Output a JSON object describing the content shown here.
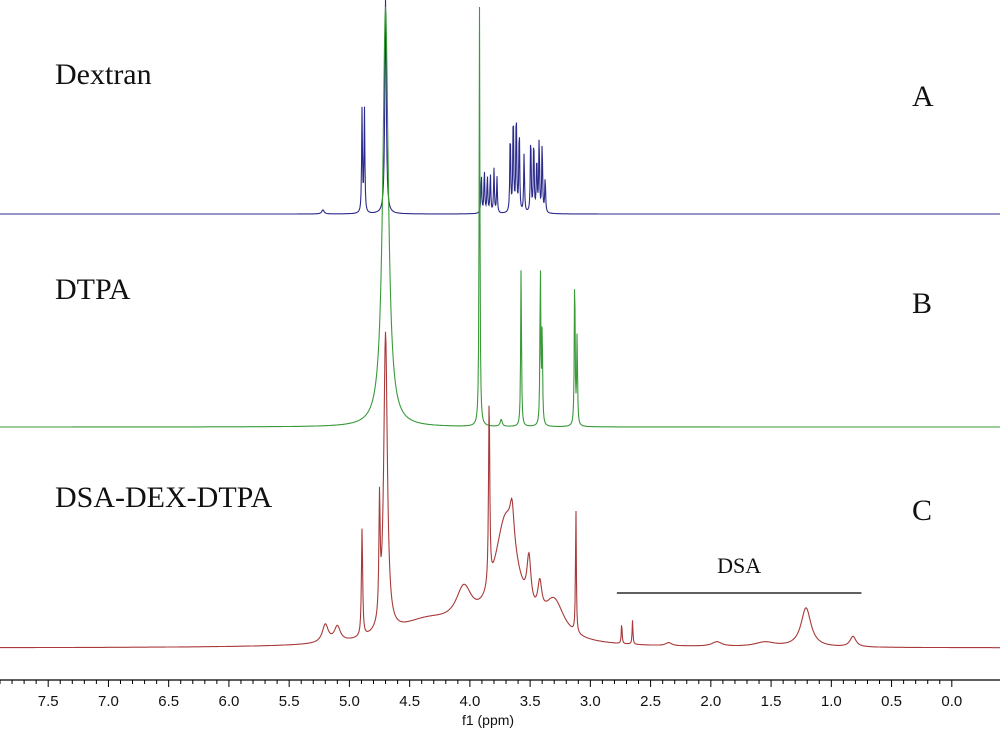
{
  "chart_data": {
    "type": "line",
    "title": "",
    "xlabel": "f1 (ppm)",
    "ylabel": "",
    "x_reversed": true,
    "xlim": [
      7.9,
      -0.4
    ],
    "ticks": [
      "7.5",
      "7.0",
      "6.5",
      "6.0",
      "5.5",
      "5.0",
      "4.5",
      "4.0",
      "3.5",
      "3.0",
      "2.5",
      "2.0",
      "1.5",
      "1.0",
      "0.5",
      "0.0"
    ],
    "tick_values": [
      7.5,
      7.0,
      6.5,
      6.0,
      5.5,
      5.0,
      4.5,
      4.0,
      3.5,
      3.0,
      2.5,
      2.0,
      1.5,
      1.0,
      0.5,
      0.0
    ],
    "annotation": {
      "text": "DSA",
      "x_from": 2.78,
      "x_to": 0.75
    },
    "series": [
      {
        "name": "Dextran",
        "tag": "A",
        "color": "#2b2b8c",
        "peaks": [
          {
            "x": 5.22,
            "h": 0.02,
            "w": 0.012
          },
          {
            "x": 4.895,
            "h": 0.52,
            "w": 0.004
          },
          {
            "x": 4.875,
            "h": 0.52,
            "w": 0.004
          },
          {
            "x": 4.7,
            "h": 1.1,
            "w": 0.007
          },
          {
            "x": 3.905,
            "h": 0.2,
            "w": 0.004
          },
          {
            "x": 3.88,
            "h": 0.22,
            "w": 0.004
          },
          {
            "x": 3.855,
            "h": 0.19,
            "w": 0.004
          },
          {
            "x": 3.83,
            "h": 0.2,
            "w": 0.004
          },
          {
            "x": 3.8,
            "h": 0.22,
            "w": 0.004
          },
          {
            "x": 3.775,
            "h": 0.18,
            "w": 0.004
          },
          {
            "x": 3.665,
            "h": 0.42,
            "w": 0.004
          },
          {
            "x": 3.64,
            "h": 0.52,
            "w": 0.004
          },
          {
            "x": 3.615,
            "h": 0.53,
            "w": 0.004
          },
          {
            "x": 3.59,
            "h": 0.44,
            "w": 0.004
          },
          {
            "x": 3.55,
            "h": 0.3,
            "w": 0.004
          },
          {
            "x": 3.495,
            "h": 0.4,
            "w": 0.004
          },
          {
            "x": 3.47,
            "h": 0.38,
            "w": 0.004
          },
          {
            "x": 3.445,
            "h": 0.28,
            "w": 0.004
          },
          {
            "x": 3.425,
            "h": 0.38,
            "w": 0.004
          },
          {
            "x": 3.4,
            "h": 0.36,
            "w": 0.004
          },
          {
            "x": 3.375,
            "h": 0.18,
            "w": 0.004
          }
        ]
      },
      {
        "name": "DTPA",
        "tag": "B",
        "color": "#3a9a3a",
        "peaks": [
          {
            "x": 4.7,
            "h": 1.2,
            "w": 0.028
          },
          {
            "x": 3.92,
            "h": 1.2,
            "w": 0.004
          },
          {
            "x": 3.74,
            "h": 0.02,
            "w": 0.01
          },
          {
            "x": 3.575,
            "h": 0.46,
            "w": 0.004
          },
          {
            "x": 3.415,
            "h": 0.46,
            "w": 0.004
          },
          {
            "x": 3.4,
            "h": 0.28,
            "w": 0.004
          },
          {
            "x": 3.13,
            "h": 0.45,
            "w": 0.004
          },
          {
            "x": 3.11,
            "h": 0.26,
            "w": 0.004
          }
        ]
      },
      {
        "name": "DSA-DEX-DTPA",
        "tag": "C",
        "color": "#a83a3a",
        "peaks": [
          {
            "x": 5.2,
            "h": 0.06,
            "w": 0.03
          },
          {
            "x": 5.1,
            "h": 0.05,
            "w": 0.03
          },
          {
            "x": 4.895,
            "h": 0.36,
            "w": 0.006
          },
          {
            "x": 4.75,
            "h": 0.38,
            "w": 0.006
          },
          {
            "x": 4.7,
            "h": 1.0,
            "w": 0.018
          },
          {
            "x": 4.35,
            "h": 0.08,
            "w": 0.35
          },
          {
            "x": 4.05,
            "h": 0.12,
            "w": 0.08
          },
          {
            "x": 3.84,
            "h": 0.62,
            "w": 0.006
          },
          {
            "x": 3.7,
            "h": 0.4,
            "w": 0.12
          },
          {
            "x": 3.65,
            "h": 0.12,
            "w": 0.02
          },
          {
            "x": 3.51,
            "h": 0.16,
            "w": 0.02
          },
          {
            "x": 3.42,
            "h": 0.1,
            "w": 0.02
          },
          {
            "x": 3.3,
            "h": 0.12,
            "w": 0.1
          },
          {
            "x": 3.12,
            "h": 0.42,
            "w": 0.004
          },
          {
            "x": 2.74,
            "h": 0.07,
            "w": 0.004
          },
          {
            "x": 2.65,
            "h": 0.08,
            "w": 0.004
          },
          {
            "x": 2.35,
            "h": 0.01,
            "w": 0.03
          },
          {
            "x": 1.95,
            "h": 0.015,
            "w": 0.05
          },
          {
            "x": 1.55,
            "h": 0.015,
            "w": 0.1
          },
          {
            "x": 1.21,
            "h": 0.13,
            "w": 0.05
          },
          {
            "x": 0.82,
            "h": 0.035,
            "w": 0.03
          }
        ]
      }
    ]
  }
}
